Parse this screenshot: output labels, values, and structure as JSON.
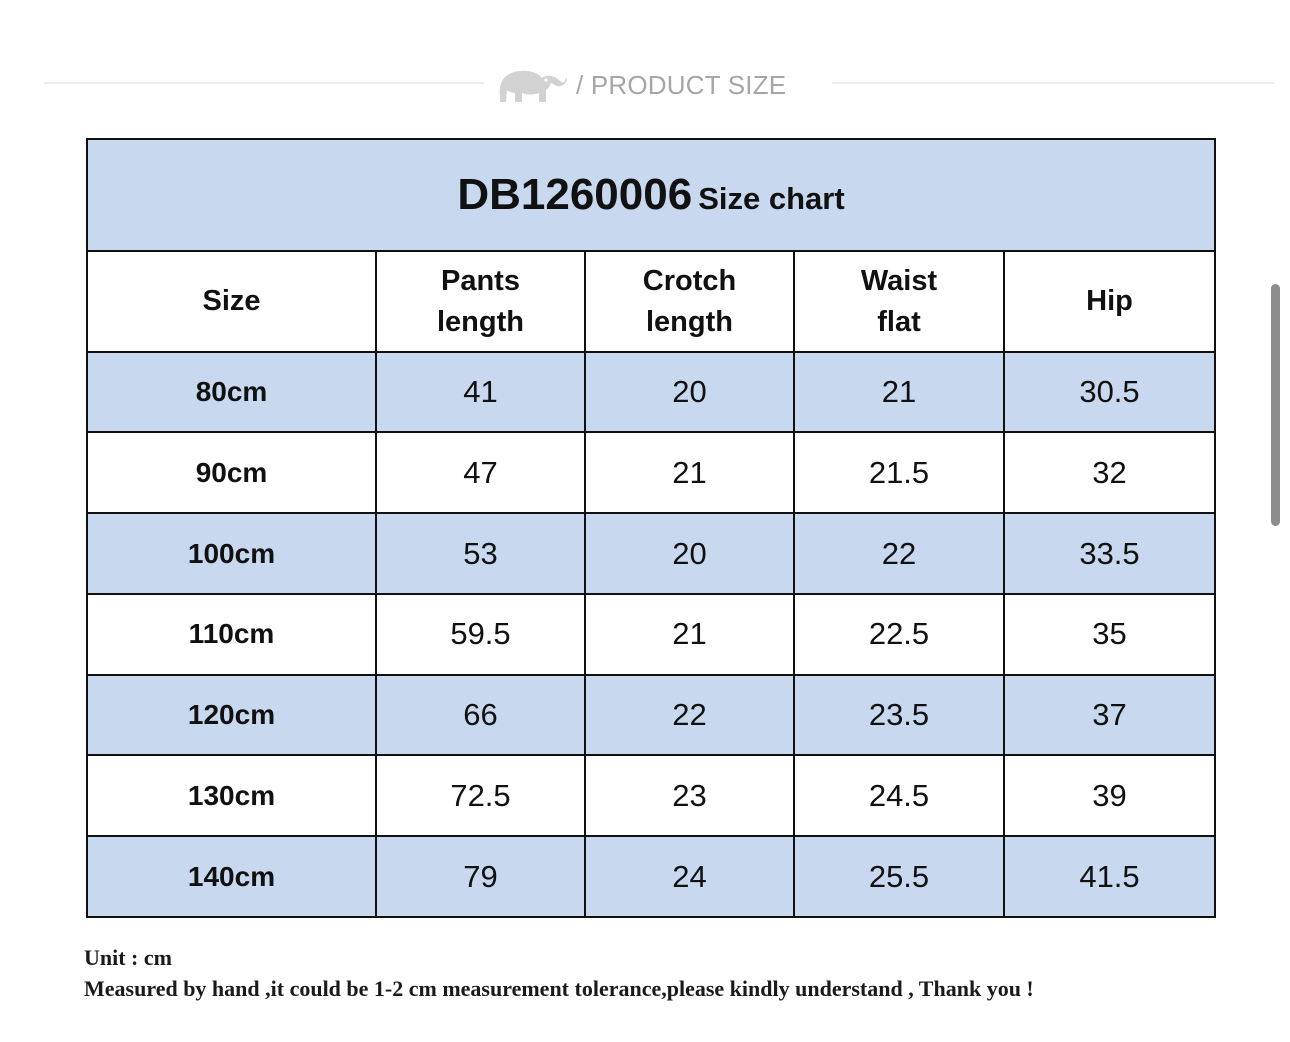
{
  "header": {
    "title": "/ PRODUCT SIZE",
    "icon": "elephant-icon"
  },
  "size_chart": {
    "code": "DB1260006",
    "suffix": "Size chart",
    "columns": [
      {
        "line1": "Size",
        "line2": ""
      },
      {
        "line1": "Pants",
        "line2": "length"
      },
      {
        "line1": "Crotch",
        "line2": "length"
      },
      {
        "line1": "Waist",
        "line2": "flat"
      },
      {
        "line1": "Hip",
        "line2": ""
      }
    ],
    "rows": [
      [
        "80cm",
        "41",
        "20",
        "21",
        "30.5"
      ],
      [
        "90cm",
        "47",
        "21",
        "21.5",
        "32"
      ],
      [
        "100cm",
        "53",
        "20",
        "22",
        "33.5"
      ],
      [
        "110cm",
        "59.5",
        "21",
        "22.5",
        "35"
      ],
      [
        "120cm",
        "66",
        "22",
        "23.5",
        "37"
      ],
      [
        "130cm",
        "72.5",
        "23",
        "24.5",
        "39"
      ],
      [
        "140cm",
        "79",
        "24",
        "25.5",
        "41.5"
      ]
    ]
  },
  "notes": {
    "unit": "Unit : cm",
    "tolerance": "Measured by hand ,it could be 1-2 cm measurement tolerance,please kindly understand , Thank you !"
  },
  "colors": {
    "shaded_row": "#c8d8ef",
    "header_text": "#a6a6a6",
    "border": "#111111"
  }
}
